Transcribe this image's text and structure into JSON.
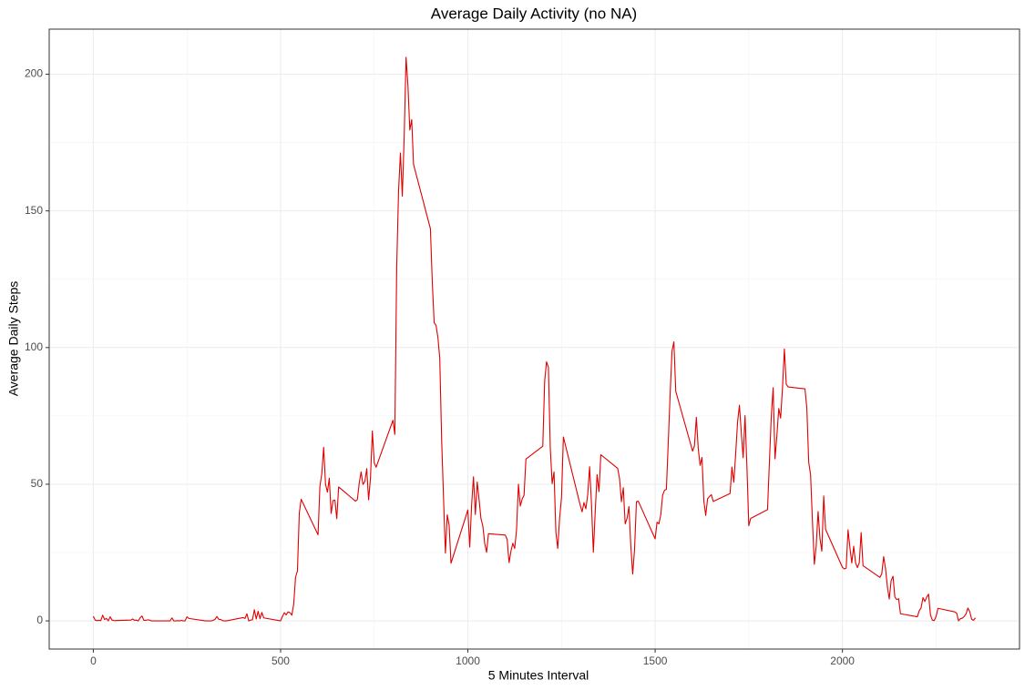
{
  "chart_data": {
    "type": "line",
    "title": "Average Daily Activity (no NA)",
    "x_label": "5 Minutes Interval",
    "y_label": "Average Daily Steps",
    "x": [
      0,
      5,
      10,
      15,
      20,
      25,
      30,
      35,
      40,
      45,
      50,
      55,
      100,
      105,
      110,
      115,
      120,
      125,
      130,
      135,
      140,
      145,
      150,
      155,
      200,
      205,
      210,
      215,
      220,
      225,
      230,
      235,
      240,
      245,
      250,
      255,
      300,
      305,
      310,
      315,
      320,
      325,
      330,
      335,
      340,
      345,
      350,
      355,
      400,
      405,
      410,
      415,
      420,
      425,
      430,
      435,
      440,
      445,
      450,
      455,
      500,
      505,
      510,
      515,
      520,
      525,
      530,
      535,
      540,
      545,
      550,
      555,
      600,
      605,
      610,
      615,
      620,
      625,
      630,
      635,
      640,
      645,
      650,
      655,
      700,
      705,
      710,
      715,
      720,
      725,
      730,
      735,
      740,
      745,
      750,
      755,
      800,
      805,
      810,
      815,
      820,
      825,
      830,
      835,
      840,
      845,
      850,
      855,
      900,
      905,
      910,
      915,
      920,
      925,
      930,
      935,
      940,
      945,
      950,
      955,
      1000,
      1005,
      1010,
      1015,
      1020,
      1025,
      1030,
      1035,
      1040,
      1045,
      1050,
      1055,
      1100,
      1105,
      1110,
      1115,
      1120,
      1125,
      1130,
      1135,
      1140,
      1145,
      1150,
      1155,
      1200,
      1205,
      1210,
      1215,
      1220,
      1225,
      1230,
      1235,
      1240,
      1245,
      1250,
      1255,
      1300,
      1305,
      1310,
      1315,
      1320,
      1325,
      1330,
      1335,
      1340,
      1345,
      1350,
      1355,
      1400,
      1405,
      1410,
      1415,
      1420,
      1425,
      1430,
      1435,
      1440,
      1445,
      1450,
      1455,
      1500,
      1505,
      1510,
      1515,
      1520,
      1525,
      1530,
      1535,
      1540,
      1545,
      1550,
      1555,
      1600,
      1605,
      1610,
      1615,
      1620,
      1625,
      1630,
      1635,
      1640,
      1645,
      1650,
      1655,
      1700,
      1705,
      1710,
      1715,
      1720,
      1725,
      1730,
      1735,
      1740,
      1745,
      1750,
      1755,
      1800,
      1805,
      1810,
      1815,
      1820,
      1825,
      1830,
      1835,
      1840,
      1845,
      1850,
      1855,
      1900,
      1905,
      1910,
      1915,
      1920,
      1925,
      1930,
      1935,
      1940,
      1945,
      1950,
      1955,
      2000,
      2005,
      2010,
      2015,
      2020,
      2025,
      2030,
      2035,
      2040,
      2045,
      2050,
      2055,
      2100,
      2105,
      2110,
      2115,
      2120,
      2125,
      2130,
      2135,
      2140,
      2145,
      2150,
      2155,
      2200,
      2205,
      2210,
      2215,
      2220,
      2225,
      2230,
      2235,
      2240,
      2245,
      2250,
      2255,
      2300,
      2305,
      2310,
      2315,
      2320,
      2325,
      2330,
      2335,
      2340,
      2345,
      2350,
      2355
    ],
    "series": [
      {
        "name": "Average Daily Steps",
        "color": "#e00000",
        "values": [
          1.7,
          0.3,
          0.1,
          0.2,
          0.1,
          2.1,
          0.5,
          0.9,
          0,
          1.5,
          0.3,
          0.1,
          0.3,
          0.7,
          0.2,
          0.3,
          0,
          1.1,
          1.8,
          0.2,
          0.2,
          0.4,
          0.3,
          0,
          0,
          0,
          1.1,
          0,
          0,
          0.1,
          0,
          0.2,
          0,
          0,
          1.5,
          0.9,
          0,
          0,
          0,
          0,
          0.2,
          0.6,
          1.6,
          0.6,
          0.5,
          0.1,
          0,
          0,
          1.2,
          0.9,
          2.6,
          0,
          0.3,
          0.4,
          4.1,
          0.7,
          3.5,
          0.8,
          3.1,
          1.1,
          0,
          1.6,
          3.0,
          2.2,
          3.3,
          3.0,
          2.1,
          6.1,
          16.0,
          18.3,
          39.5,
          44.5,
          31.5,
          49.3,
          53.8,
          63.5,
          50.0,
          47.1,
          52.2,
          39.3,
          44.0,
          44.2,
          37.4,
          49.0,
          43.8,
          44.4,
          50.5,
          54.5,
          49.9,
          51.0,
          55.7,
          44.3,
          52.3,
          69.5,
          57.8,
          56.2,
          73.4,
          68.2,
          129.4,
          157.5,
          171.2,
          155.4,
          177.3,
          206.2,
          195.9,
          179.6,
          183.4,
          167.0,
          143.5,
          124.0,
          109.1,
          108.1,
          103.7,
          96.0,
          66.2,
          45.2,
          24.8,
          38.8,
          35.0,
          21.1,
          40.6,
          27.0,
          42.4,
          52.7,
          38.9,
          50.8,
          44.3,
          37.4,
          34.7,
          28.3,
          25.1,
          31.9,
          31.4,
          29.7,
          21.3,
          25.5,
          28.4,
          26.5,
          33.4,
          50.0,
          42.0,
          44.6,
          46.0,
          59.2,
          63.9,
          87.7,
          94.8,
          92.8,
          63.4,
          50.2,
          54.5,
          32.4,
          26.5,
          37.7,
          45.1,
          67.3,
          42.3,
          39.9,
          43.3,
          41.0,
          46.2,
          56.4,
          42.8,
          25.1,
          40.0,
          53.5,
          47.3,
          60.8,
          55.8,
          52.0,
          43.6,
          48.7,
          35.5,
          37.5,
          41.8,
          27.5,
          17.1,
          26.1,
          43.6,
          43.8,
          30.0,
          36.1,
          35.5,
          38.8,
          46.0,
          47.8,
          48.1,
          65.3,
          82.9,
          98.7,
          102.1,
          84.0,
          62.1,
          64.1,
          74.5,
          63.2,
          56.9,
          59.8,
          43.9,
          38.6,
          44.7,
          45.5,
          46.2,
          43.7,
          46.6,
          56.3,
          50.7,
          61.2,
          72.7,
          78.9,
          68.9,
          59.7,
          75.1,
          56.5,
          34.8,
          37.5,
          40.7,
          58.0,
          74.7,
          85.3,
          59.3,
          67.8,
          77.7,
          74.2,
          85.3,
          99.5,
          86.6,
          85.6,
          84.9,
          77.8,
          58.0,
          53.4,
          36.3,
          20.7,
          27.4,
          40.0,
          30.2,
          25.5,
          45.7,
          33.5,
          19.6,
          19.0,
          19.3,
          33.3,
          26.8,
          21.2,
          27.3,
          21.3,
          19.5,
          21.3,
          32.3,
          20.2,
          15.9,
          17.2,
          23.5,
          19.2,
          12.5,
          8.0,
          14.7,
          16.3,
          8.7,
          7.8,
          8.1,
          2.6,
          1.5,
          3.7,
          4.8,
          8.5,
          7.1,
          8.7,
          9.8,
          2.2,
          0.3,
          0.1,
          1.6,
          4.6,
          3.3,
          2.8,
          0,
          0.8,
          1.0,
          1.6,
          2.6,
          4.7,
          3.3,
          0.6,
          0.2,
          1.1
        ]
      }
    ],
    "xlim": [
      -117.75,
      2472.75
    ],
    "ylim": [
      -10.3,
      216.5
    ],
    "xticks": [
      0,
      500,
      1000,
      1500,
      2000
    ],
    "yticks": [
      0,
      50,
      100,
      150,
      200
    ],
    "x_minor_ticks": [
      250,
      750,
      1250,
      1750,
      2250
    ],
    "y_minor_ticks": [
      25,
      75,
      125,
      175
    ],
    "grid": true
  }
}
